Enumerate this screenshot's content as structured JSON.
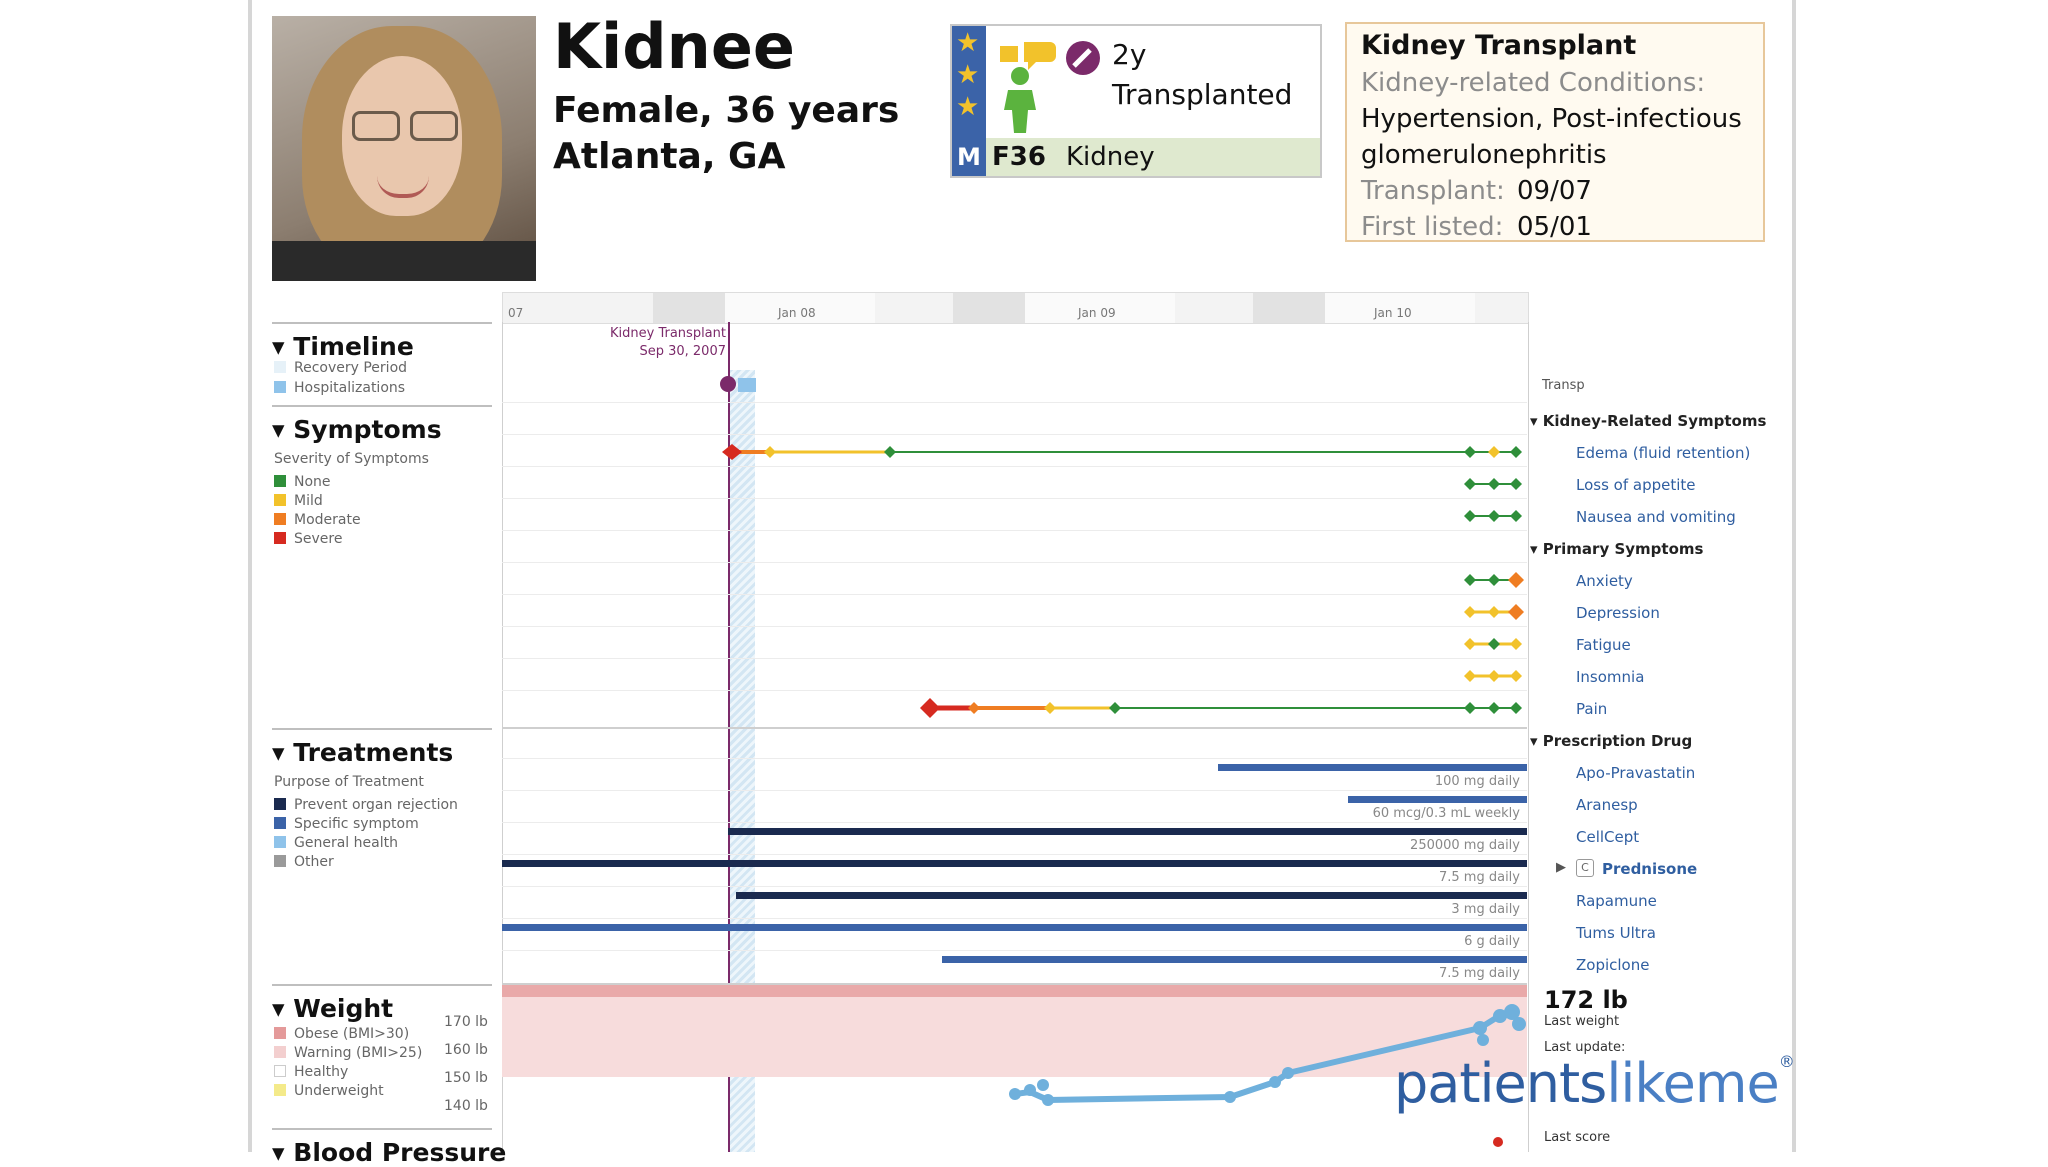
{
  "profile": {
    "name": "Kidnee",
    "gender_age": "Female, 36 years",
    "location": "Atlanta, GA"
  },
  "badge": {
    "duration": "2y",
    "status": "Transplanted",
    "m_label": "M",
    "code": "F36",
    "organ": "Kidney"
  },
  "infobox": {
    "title": "Kidney Transplant",
    "conditions_label": "Kidney-related Conditions:",
    "conditions_line1": "Hypertension, Post-infectious",
    "conditions_line2": "glomerulonephritis",
    "transplant_label": "Transplant:",
    "transplant_value": "09/07",
    "listed_label": "First listed:",
    "listed_value": "05/01"
  },
  "timeline": {
    "axis": [
      "07",
      "Jan 08",
      "Jan 09",
      "Jan 10"
    ],
    "event_label": "Kidney Transplant",
    "event_date": "Sep 30, 2007",
    "transp_label": "Transp"
  },
  "sections": {
    "timeline": {
      "title": "Timeline",
      "items": [
        "Recovery Period",
        "Hospitalizations"
      ]
    },
    "symptoms": {
      "title": "Symptoms",
      "subtitle": "Severity of Symptoms",
      "items": [
        {
          "label": "None",
          "color": "#2f8f3a"
        },
        {
          "label": "Mild",
          "color": "#f2c22b"
        },
        {
          "label": "Moderate",
          "color": "#ef7d22"
        },
        {
          "label": "Severe",
          "color": "#d62a20"
        }
      ]
    },
    "treatments": {
      "title": "Treatments",
      "subtitle": "Purpose of Treatment",
      "items": [
        {
          "label": "Prevent organ rejection",
          "color": "#1a2a4f"
        },
        {
          "label": "Specific symptom",
          "color": "#3b63a8"
        },
        {
          "label": "General health",
          "color": "#8fc3ea"
        },
        {
          "label": "Other",
          "color": "#9a9a9a"
        }
      ]
    },
    "weight": {
      "title": "Weight",
      "items": [
        {
          "label": "Obese (BMI>30)",
          "color": "#e49a9a"
        },
        {
          "label": "Warning (BMI>25)",
          "color": "#f3cfcf"
        },
        {
          "label": "Healthy",
          "color": "#ffffff"
        },
        {
          "label": "Underweight",
          "color": "#f4ea8a"
        }
      ],
      "ticks": [
        "170 lb",
        "160 lb",
        "150 lb",
        "140 lb"
      ]
    },
    "blood_pressure": {
      "title": "Blood Pressure"
    }
  },
  "right_panel": {
    "kidney_header": "Kidney-Related Symptoms",
    "kidney_items": [
      "Edema (fluid retention)",
      "Loss of appetite",
      "Nausea and vomiting"
    ],
    "primary_header": "Primary Symptoms",
    "primary_items": [
      "Anxiety",
      "Depression",
      "Fatigue",
      "Insomnia",
      "Pain"
    ],
    "drug_header": "Prescription Drug",
    "drug_items": [
      "Apo-Pravastatin",
      "Aranesp",
      "CellCept",
      "Prednisone",
      "Rapamune",
      "Tums Ultra",
      "Zopiclone"
    ],
    "c_tag": "C",
    "last_weight_value": "172 lb",
    "last_weight_label": "Last weight",
    "last_update_label": "Last update:",
    "last_score_label": "Last score"
  },
  "doses": [
    "100 mg daily",
    "60 mcg/0.3 mL weekly",
    "250000 mg daily",
    "7.5 mg daily",
    "3 mg daily",
    "6 g daily",
    "7.5 mg daily"
  ],
  "brand": {
    "part1": "patients",
    "part2": "likeme",
    "mark": "®"
  }
}
